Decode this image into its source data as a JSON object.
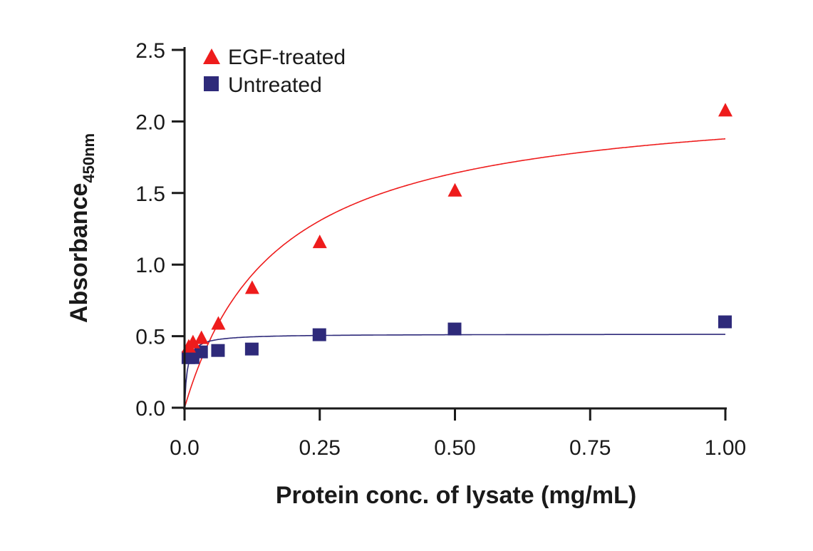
{
  "chart_data": {
    "type": "scatter",
    "xlabel": "Protein conc. of lysate (mg/mL)",
    "ylabel": "Absorbance",
    "ylabel_subscript": "450nm",
    "xlim": [
      0,
      1.0
    ],
    "ylim": [
      0,
      2.5
    ],
    "xticks": [
      "0.0",
      "0.25",
      "0.50",
      "0.75",
      "1.00"
    ],
    "xtick_values": [
      0,
      0.25,
      0.5,
      0.75,
      1.0
    ],
    "yticks": [
      "0.0",
      "0.5",
      "1.0",
      "1.5",
      "2.0",
      "2.5"
    ],
    "ytick_values": [
      0,
      0.5,
      1.0,
      1.5,
      2.0,
      2.5
    ],
    "grid": false,
    "legend_position": "top-left",
    "series": [
      {
        "name": "EGF-treated",
        "marker": "triangle",
        "color": "#ee1c1c",
        "x": [
          0.0078,
          0.0156,
          0.03125,
          0.0625,
          0.125,
          0.25,
          0.5,
          1.0
        ],
        "y": [
          0.43,
          0.46,
          0.49,
          0.59,
          0.84,
          1.16,
          1.52,
          2.08
        ],
        "fit": {
          "model": "hyperbola",
          "vmax": 2.2,
          "k": 0.171
        }
      },
      {
        "name": "Untreated",
        "marker": "square",
        "color": "#2e2a7a",
        "x": [
          0.0078,
          0.0156,
          0.03125,
          0.0625,
          0.125,
          0.25,
          0.5,
          1.0
        ],
        "y": [
          0.35,
          0.35,
          0.39,
          0.4,
          0.41,
          0.51,
          0.55,
          0.6
        ],
        "fit": {
          "model": "hyperbola",
          "vmax": 0.515,
          "k": 0.005
        }
      }
    ]
  }
}
